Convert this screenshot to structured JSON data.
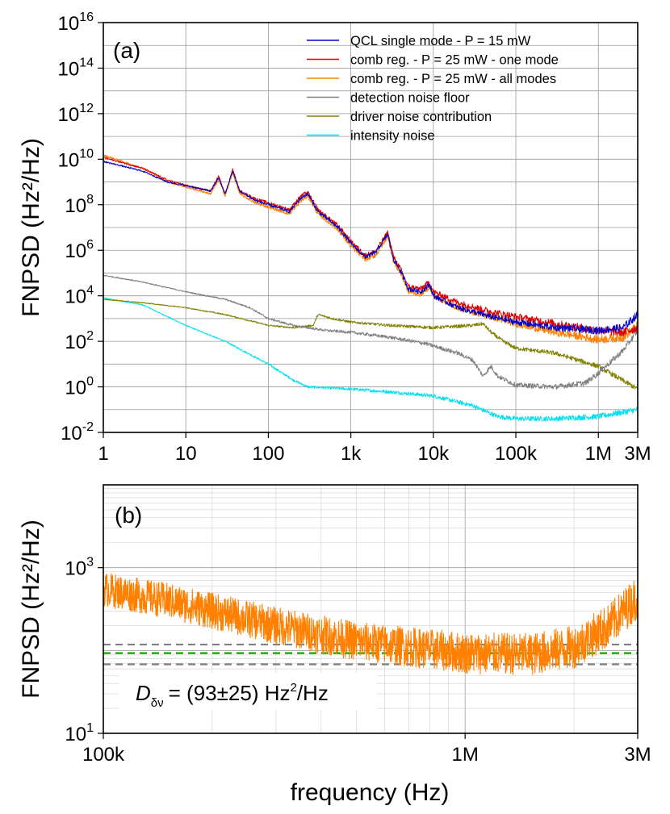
{
  "chart_data": [
    {
      "panel": "(a)",
      "type": "line",
      "xscale": "log",
      "yscale": "log",
      "xlim": [
        1,
        3000000
      ],
      "ylim": [
        0.01,
        1e+16
      ],
      "ylabel": "FNPSD (Hz²/Hz)",
      "xlabel": "",
      "grid": true,
      "legend_position": "top-right",
      "x_ticks": [
        {
          "v": 1,
          "label": "1"
        },
        {
          "v": 10,
          "label": "10"
        },
        {
          "v": 100,
          "label": "100"
        },
        {
          "v": 1000,
          "label": "1k"
        },
        {
          "v": 10000,
          "label": "10k"
        },
        {
          "v": 100000,
          "label": "100k"
        },
        {
          "v": 1000000,
          "label": "1M"
        },
        {
          "v": 3000000,
          "label": "3M"
        }
      ],
      "y_ticks": [
        {
          "exp": -2,
          "label": "10",
          "sup": "-2"
        },
        {
          "exp": 0,
          "label": "10",
          "sup": "0"
        },
        {
          "exp": 2,
          "label": "10",
          "sup": "2"
        },
        {
          "exp": 4,
          "label": "10",
          "sup": "4"
        },
        {
          "exp": 6,
          "label": "10",
          "sup": "6"
        },
        {
          "exp": 8,
          "label": "10",
          "sup": "8"
        },
        {
          "exp": 10,
          "label": "10",
          "sup": "10"
        },
        {
          "exp": 12,
          "label": "10",
          "sup": "12"
        },
        {
          "exp": 14,
          "label": "10",
          "sup": "14"
        },
        {
          "exp": 16,
          "label": "10",
          "sup": "16"
        }
      ],
      "series": [
        {
          "name": "QCL single mode - P = 15 mW",
          "color": "#0000cc",
          "noise_dex": 0.08,
          "points": [
            [
              1,
              8000000000.0
            ],
            [
              3,
              3000000000.0
            ],
            [
              6,
              1000000000.0
            ],
            [
              12,
              600000000.0
            ],
            [
              20,
              400000000.0
            ],
            [
              25,
              1500000000.0
            ],
            [
              30,
              300000000.0
            ],
            [
              37,
              3000000000.0
            ],
            [
              45,
              400000000.0
            ],
            [
              70,
              150000000.0
            ],
            [
              100,
              100000000.0
            ],
            [
              180,
              50000000.0
            ],
            [
              250,
              200000000.0
            ],
            [
              300,
              300000000.0
            ],
            [
              400,
              50000000.0
            ],
            [
              700,
              10000000.0
            ],
            [
              1000,
              2000000.0
            ],
            [
              1500,
              500000.0
            ],
            [
              2000,
              800000.0
            ],
            [
              2800,
              5000000.0
            ],
            [
              3300,
              400000.0
            ],
            [
              4000,
              120000.0
            ],
            [
              5000,
              20000.0
            ],
            [
              7000,
              15000.0
            ],
            [
              9000,
              30000.0
            ],
            [
              10000,
              10000.0
            ],
            [
              20000,
              3000.0
            ],
            [
              50000,
              1200.0
            ],
            [
              100000,
              700.0
            ],
            [
              300000,
              400.0
            ],
            [
              1000000,
              300.0
            ],
            [
              2000000,
              400.0
            ],
            [
              3000000,
              1500.0
            ]
          ]
        },
        {
          "name": "comb reg. - P = 25 mW - one mode",
          "color": "#e00000",
          "noise_dex": 0.09,
          "points": [
            [
              1,
              12000000000.0
            ],
            [
              3,
              4000000000.0
            ],
            [
              6,
              1200000000.0
            ],
            [
              12,
              600000000.0
            ],
            [
              20,
              400000000.0
            ],
            [
              25,
              1800000000.0
            ],
            [
              30,
              300000000.0
            ],
            [
              37,
              3500000000.0
            ],
            [
              45,
              400000000.0
            ],
            [
              70,
              180000000.0
            ],
            [
              100,
              120000000.0
            ],
            [
              180,
              60000000.0
            ],
            [
              250,
              250000000.0
            ],
            [
              300,
              350000000.0
            ],
            [
              400,
              60000000.0
            ],
            [
              700,
              12000000.0
            ],
            [
              1000,
              2500000.0
            ],
            [
              1500,
              600000.0
            ],
            [
              2000,
              900000.0
            ],
            [
              2800,
              6000000.0
            ],
            [
              3300,
              500000.0
            ],
            [
              4000,
              150000.0
            ],
            [
              5000,
              25000.0
            ],
            [
              7000,
              20000.0
            ],
            [
              9000,
              40000.0
            ],
            [
              10000,
              15000.0
            ],
            [
              20000,
              5000.0
            ],
            [
              50000,
              2000.0
            ],
            [
              100000,
              1200.0
            ],
            [
              300000,
              600.0
            ],
            [
              1000000,
              300.0
            ],
            [
              2000000,
              250.0
            ],
            [
              3000000,
              400.0
            ]
          ]
        },
        {
          "name": "comb reg. - P = 25 mW - all modes",
          "color": "#ff8000",
          "noise_dex": 0.09,
          "points": [
            [
              1,
              15000000000.0
            ],
            [
              3,
              4000000000.0
            ],
            [
              6,
              1000000000.0
            ],
            [
              12,
              500000000.0
            ],
            [
              20,
              300000000.0
            ],
            [
              25,
              1200000000.0
            ],
            [
              30,
              250000000.0
            ],
            [
              37,
              2500000000.0
            ],
            [
              45,
              300000000.0
            ],
            [
              70,
              120000000.0
            ],
            [
              100,
              80000000.0
            ],
            [
              180,
              40000000.0
            ],
            [
              250,
              150000000.0
            ],
            [
              300,
              250000000.0
            ],
            [
              400,
              40000000.0
            ],
            [
              700,
              8000000.0
            ],
            [
              1000,
              1500000.0
            ],
            [
              1500,
              400000.0
            ],
            [
              2000,
              600000.0
            ],
            [
              2800,
              4000000.0
            ],
            [
              3300,
              300000.0
            ],
            [
              4000,
              100000.0
            ],
            [
              5000,
              15000.0
            ],
            [
              7000,
              12000.0
            ],
            [
              9000,
              25000.0
            ],
            [
              10000,
              10000.0
            ],
            [
              20000,
              3000.0
            ],
            [
              50000,
              1200.0
            ],
            [
              100000,
              600.0
            ],
            [
              300000,
              250.0
            ],
            [
              1000000,
              120.0
            ],
            [
              2000000,
              150.0
            ],
            [
              3000000,
              500.0
            ]
          ]
        },
        {
          "name": "detection noise floor",
          "color": "#808080",
          "noise_dex": 0.06,
          "points": [
            [
              1,
              80000.0
            ],
            [
              3,
              40000.0
            ],
            [
              10,
              15000.0
            ],
            [
              30,
              7000.0
            ],
            [
              60,
              3000.0
            ],
            [
              100,
              1000.0
            ],
            [
              200,
              500.0
            ],
            [
              500,
              300.0
            ],
            [
              1000,
              250.0
            ],
            [
              3000,
              150.0
            ],
            [
              8000,
              80
            ],
            [
              20000,
              30
            ],
            [
              30000,
              15
            ],
            [
              40000,
              3
            ],
            [
              50000,
              8
            ],
            [
              60000,
              3
            ],
            [
              100000,
              1.2
            ],
            [
              300000,
              1
            ],
            [
              700000,
              1.5
            ],
            [
              1000000,
              4
            ],
            [
              2000000,
              40
            ],
            [
              3000000,
              300.0
            ]
          ]
        },
        {
          "name": "driver noise contribution",
          "color": "#808000",
          "noise_dex": 0.05,
          "points": [
            [
              1,
              7000.0
            ],
            [
              3,
              5000.0
            ],
            [
              10,
              3000.0
            ],
            [
              30,
              1500.0
            ],
            [
              60,
              800.0
            ],
            [
              100,
              500.0
            ],
            [
              200,
              400.0
            ],
            [
              350,
              500.0
            ],
            [
              400,
              1500.0
            ],
            [
              600,
              1000.0
            ],
            [
              1000,
              700.0
            ],
            [
              3000,
              500.0
            ],
            [
              10000,
              400.0
            ],
            [
              30000,
              500.0
            ],
            [
              40000,
              600.0
            ],
            [
              50000,
              250.0
            ],
            [
              70000,
              100.0
            ],
            [
              100000,
              50
            ],
            [
              300000,
              30
            ],
            [
              1000000,
              8
            ],
            [
              3000000,
              0.8
            ]
          ]
        },
        {
          "name": "intensity noise",
          "color": "#00e0f0",
          "noise_dex": 0.06,
          "points": [
            [
              1,
              8000.0
            ],
            [
              3,
              4000.0
            ],
            [
              10,
              500.0
            ],
            [
              30,
              100.0
            ],
            [
              100,
              10
            ],
            [
              200,
              2
            ],
            [
              300,
              1
            ],
            [
              1000,
              0.8
            ],
            [
              3000,
              0.6
            ],
            [
              10000,
              0.4
            ],
            [
              30000,
              0.15
            ],
            [
              60000,
              0.05
            ],
            [
              100000,
              0.04
            ],
            [
              300000,
              0.04
            ],
            [
              1000000,
              0.05
            ],
            [
              3000000,
              0.1
            ]
          ]
        }
      ]
    },
    {
      "panel": "(b)",
      "type": "line",
      "xscale": "log",
      "yscale": "log",
      "xlim": [
        100000,
        3000000
      ],
      "ylim": [
        10,
        10000
      ],
      "xlabel": "frequency (Hz)",
      "ylabel": "FNPSD (Hz²/Hz)",
      "grid": true,
      "x_ticks": [
        {
          "v": 100000,
          "label": "100k"
        },
        {
          "v": 1000000,
          "label": "1M"
        },
        {
          "v": 3000000,
          "label": "3M"
        }
      ],
      "y_ticks": [
        {
          "exp": 1,
          "label": "10",
          "sup": "1"
        },
        {
          "exp": 3,
          "label": "10",
          "sup": "3"
        }
      ],
      "series": [
        {
          "name": "comb reg. - P = 25 mW - all modes",
          "color": "#ff8000",
          "noise_dex": 0.12,
          "points": [
            [
              100000,
              550
            ],
            [
              150000,
              400
            ],
            [
              200000,
              300
            ],
            [
              300000,
              200
            ],
            [
              500000,
              130
            ],
            [
              1000000,
              93
            ],
            [
              1500000,
              90
            ],
            [
              2000000,
              110
            ],
            [
              2500000,
              200
            ],
            [
              3000000,
              450
            ]
          ]
        }
      ],
      "hlines": [
        {
          "value": 118,
          "color": "#808080",
          "style": "dashed"
        },
        {
          "value": 93,
          "color": "#00a000",
          "style": "dashed"
        },
        {
          "value": 68,
          "color": "#808080",
          "style": "dashed"
        }
      ],
      "annotation": {
        "symbol": "D",
        "subscript": "δν",
        "text": "= (93±25) Hz",
        "sup": "2",
        "tail": "/Hz"
      }
    }
  ]
}
